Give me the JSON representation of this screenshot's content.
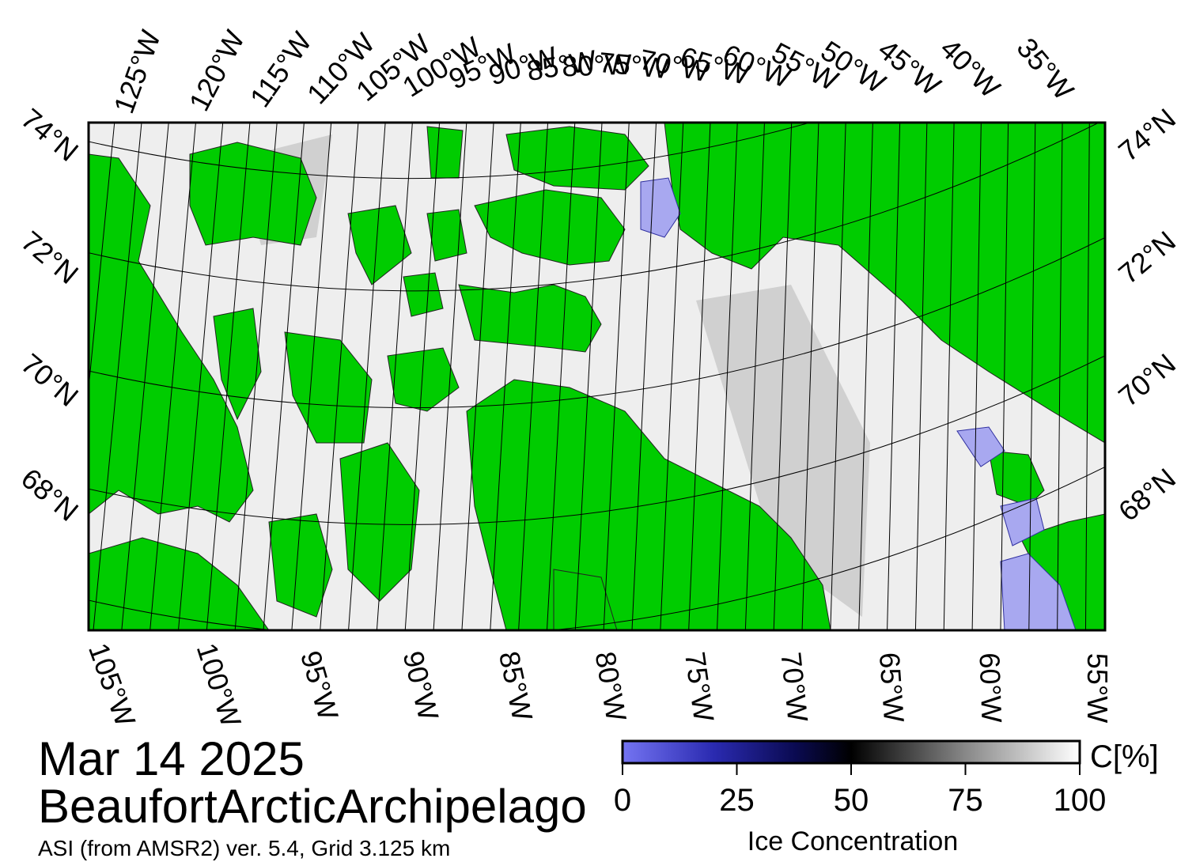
{
  "map": {
    "date": "Mar 14 2025",
    "region": "BeaufortArcticArchipelago",
    "source": "ASI (from AMSR2) ver. 5.4,  Grid 3.125 km",
    "top_labels": [
      "125°W",
      "120°W",
      "115°W",
      "110°W",
      "105°W",
      "100°W",
      "95°W",
      "90°W",
      "85°W",
      "80°W",
      "75°W",
      "70°W",
      "65°W",
      "60°W",
      "55°W",
      "50°W",
      "45°W",
      "40°W",
      "35°W"
    ],
    "bottom_labels": [
      "105°W",
      "100°W",
      "95°W",
      "90°W",
      "85°W",
      "80°W",
      "75°W",
      "70°W",
      "65°W",
      "60°W",
      "55°W"
    ],
    "left_labels": [
      "74°N",
      "72°N",
      "70°N",
      "68°N"
    ],
    "right_labels": [
      "74°N",
      "72°N",
      "70°N",
      "68°N"
    ]
  },
  "colorbar": {
    "lim": [
      0,
      100
    ],
    "ticks": [
      0,
      25,
      50,
      75,
      100
    ],
    "unit": "C[%]",
    "label": "Ice Concentration"
  }
}
